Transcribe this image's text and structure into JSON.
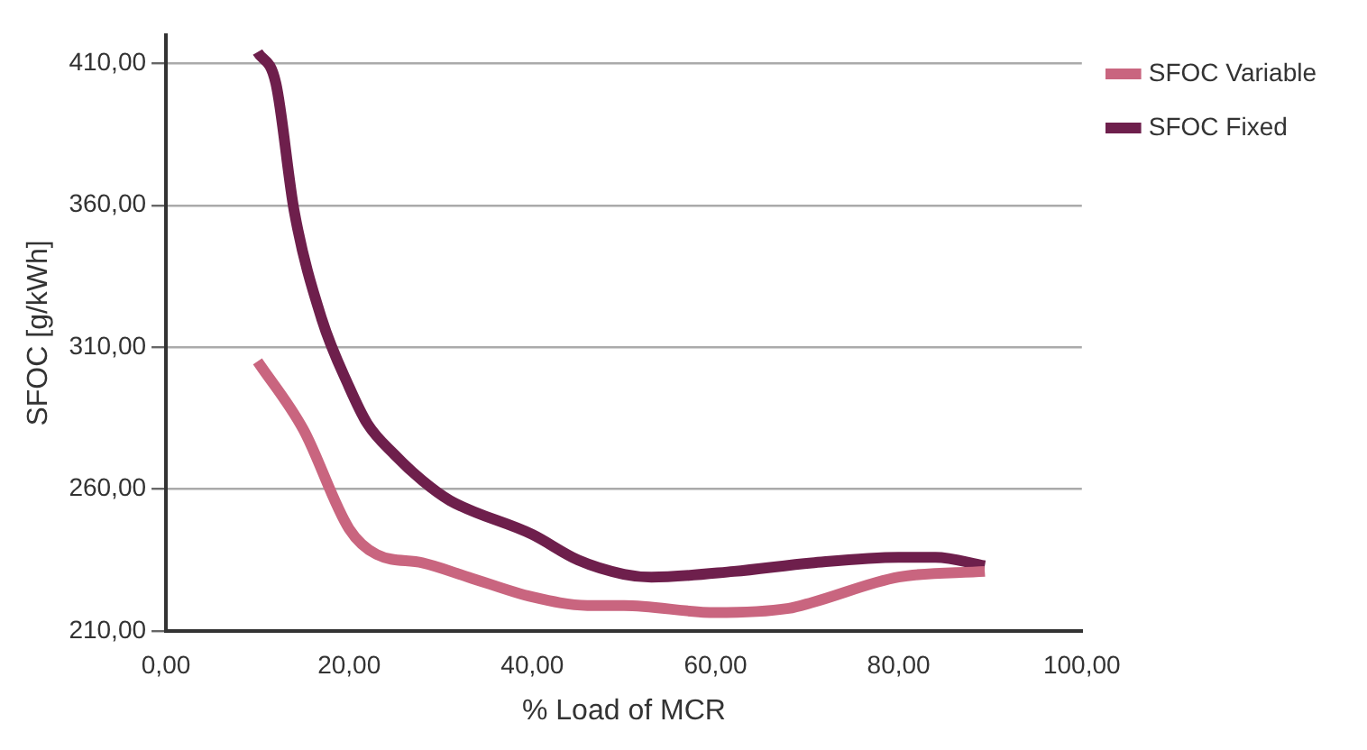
{
  "chart_data": {
    "type": "line",
    "xlabel": "% Load of MCR",
    "ylabel": "SFOC [g/kWh]",
    "xlim": [
      0,
      100
    ],
    "xticks": [
      {
        "value": 0,
        "label": "0,00"
      },
      {
        "value": 20,
        "label": "20,00"
      },
      {
        "value": 40,
        "label": "40,00"
      },
      {
        "value": 60,
        "label": "60,00"
      },
      {
        "value": 80,
        "label": "80,00"
      },
      {
        "value": 100,
        "label": "100,00"
      }
    ],
    "ylim": [
      210,
      420
    ],
    "yticks": [
      {
        "value": 210,
        "label": "210,00"
      },
      {
        "value": 260,
        "label": "260,00"
      },
      {
        "value": 310,
        "label": "310,00"
      },
      {
        "value": 360,
        "label": "360,00"
      },
      {
        "value": 410,
        "label": "410,00"
      }
    ],
    "grid": "y",
    "legend": "right",
    "marker": "none",
    "line_style": "solid",
    "series": [
      {
        "name": "SFOC Variable",
        "color": "#c9657f",
        "x": [
          10,
          15,
          20,
          23,
          28,
          33,
          40,
          46,
          50,
          60,
          68,
          70.5,
          80,
          89.4
        ],
        "values": [
          305,
          281,
          246,
          237,
          234,
          229,
          222,
          219,
          219,
          216.5,
          218,
          220,
          229,
          231
        ]
      },
      {
        "name": "SFOC Fixed",
        "color": "#6e1f4c",
        "x": [
          10,
          12,
          14,
          17,
          20,
          22,
          25,
          28,
          31,
          40,
          45,
          50,
          53,
          62,
          70.5,
          80,
          84,
          89.4
        ],
        "values": [
          414,
          403,
          358,
          320,
          296,
          283,
          272,
          263,
          256,
          244,
          235,
          230,
          229,
          231,
          234,
          236,
          236,
          233
        ]
      }
    ]
  }
}
